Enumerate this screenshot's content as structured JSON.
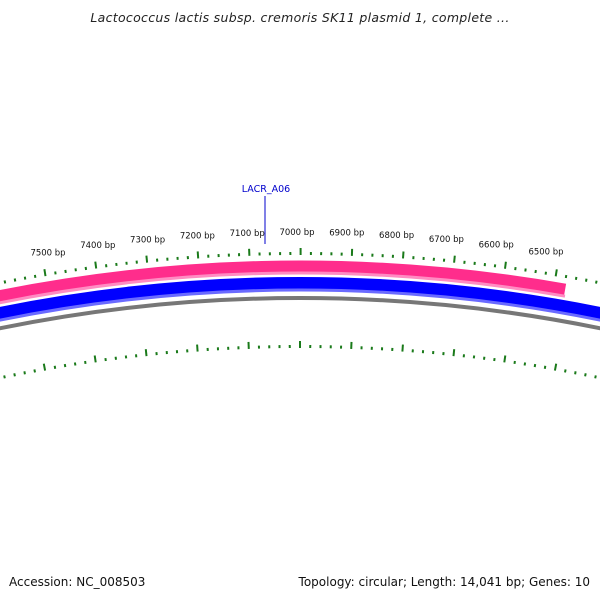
{
  "title": "Lactococcus lactis subsp. cremoris SK11 plasmid 1, complete ...",
  "footer": {
    "accession": "Accession: NC_008503",
    "summary": "Topology: circular; Length: 14,041 bp; Genes: 10"
  },
  "colors": {
    "forward_feature": "#ff2d8c",
    "reverse_feature": "#0000ff",
    "backbone": "#777777",
    "ticks": "#1a7a1a",
    "gene_label": "#0000cc"
  },
  "map": {
    "topology": "circular",
    "length_bp": 14041,
    "tick_labels": [
      "7500 bp",
      "7400 bp",
      "7300 bp",
      "7200 bp",
      "7100 bp",
      "7000 bp",
      "6900 bp",
      "6800 bp",
      "6700 bp",
      "6600 bp",
      "6500 bp"
    ],
    "gene_label": "LACR_A06"
  }
}
